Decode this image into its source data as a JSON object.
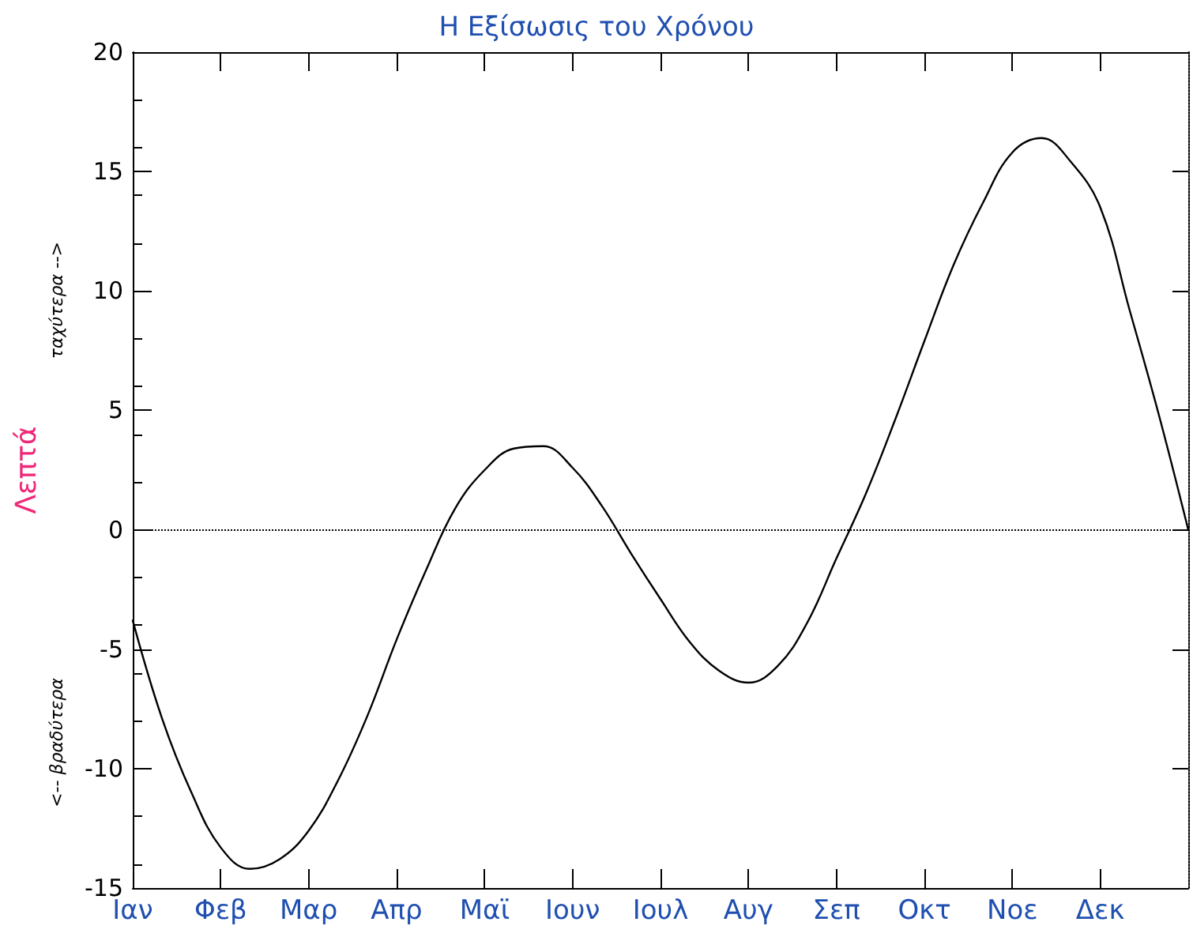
{
  "chart_data": {
    "type": "line",
    "title": "Η Εξίσωσις του Χρόνου",
    "ylabel": "Λεπτά",
    "annotations": [
      "ταχύτερα -->",
      "<-- βραδύτερα"
    ],
    "categories": [
      "Ιαν",
      null,
      null,
      "Φεβ",
      null,
      null,
      "Μαρ",
      null,
      null,
      "Απρ",
      null,
      null,
      "Μαϊ",
      null,
      null,
      "Ιουν",
      null,
      null,
      "Ιουλ",
      null,
      null,
      "Αυγ",
      null,
      null,
      "Σεπ",
      null,
      null,
      "Οκτ",
      null,
      null,
      "Νοε",
      null,
      null,
      "Δεκ",
      null,
      null,
      null
    ],
    "series": [
      {
        "color": "#000000",
        "values": [
          -3.8,
          -7.9,
          -11.0,
          -13.3,
          -14.2,
          -13.8,
          -12.6,
          -10.5,
          -7.8,
          -4.6,
          -1.7,
          0.9,
          2.5,
          3.4,
          3.5,
          2.6,
          1.0,
          -1.0,
          -2.9,
          -4.7,
          -5.9,
          -6.4,
          -5.7,
          -3.9,
          -1.2,
          1.5,
          4.6,
          7.9,
          11.1,
          13.7,
          15.8,
          16.4,
          15.4,
          13.5,
          9.2,
          4.8,
          0
        ]
      }
    ],
    "ylim": [
      -15,
      20
    ],
    "yticks": [
      -15,
      -10,
      -5,
      0,
      5,
      10,
      15,
      20
    ],
    "ref_lines": [
      {
        "axis": "y",
        "value": 0,
        "line_style": "dotted",
        "color": "#000000"
      }
    ],
    "grid": false,
    "marker": "none",
    "line_style": "solid"
  }
}
